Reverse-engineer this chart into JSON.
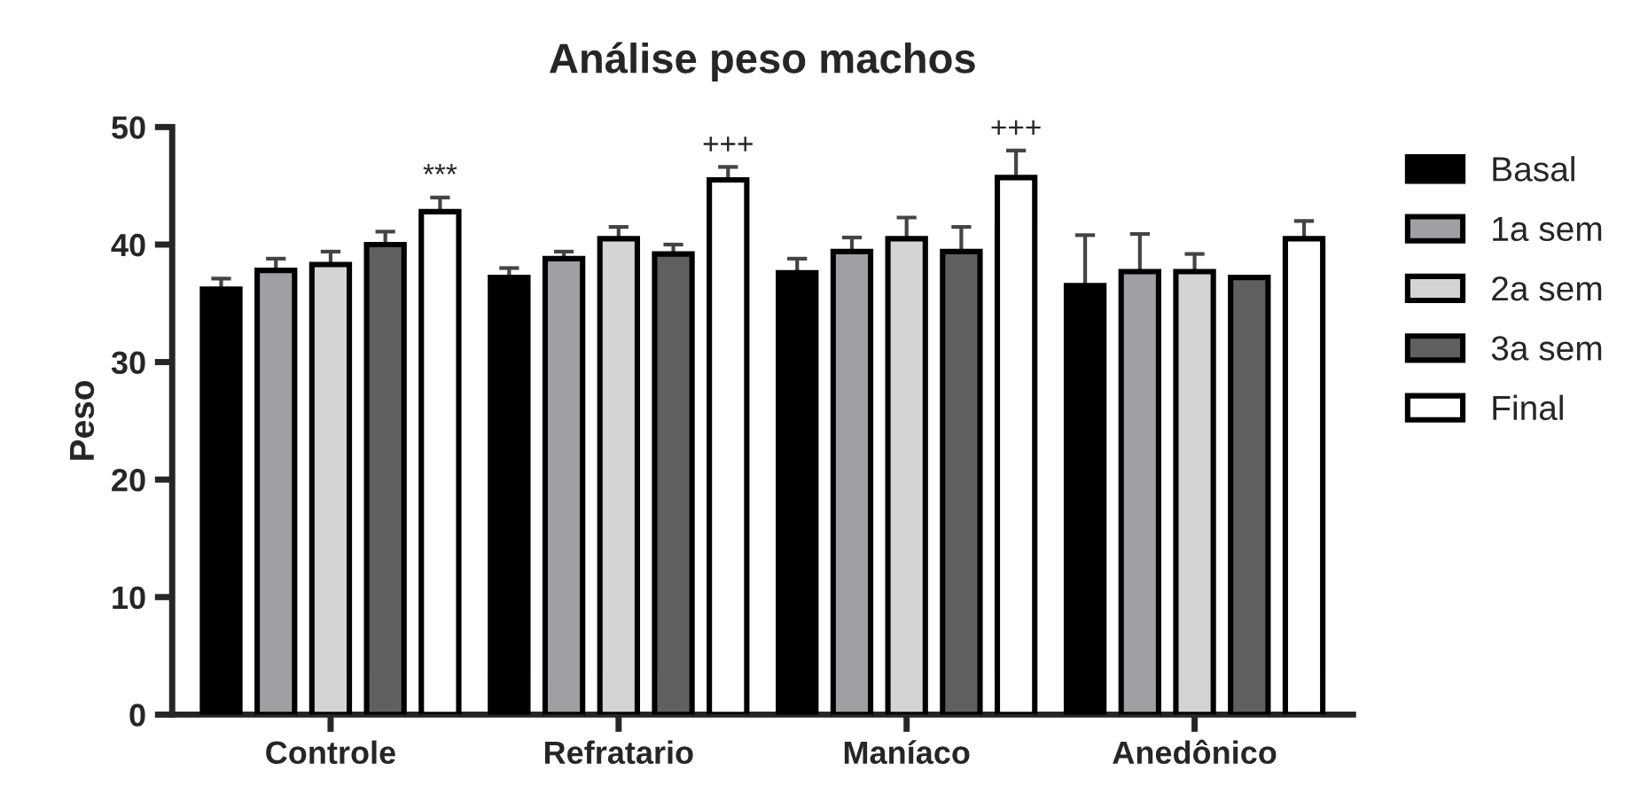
{
  "chart_data": {
    "type": "bar",
    "title": "Análise peso machos",
    "ylabel": "Peso",
    "categories": [
      "Controle",
      "Refratario",
      "Maníaco",
      "Anedônico"
    ],
    "series": [
      {
        "name": "Basal",
        "color": "#000000",
        "values": [
          36.2,
          37.2,
          37.6,
          36.5
        ],
        "errors": [
          0.9,
          0.8,
          1.2,
          4.3
        ]
      },
      {
        "name": "1a sem",
        "color": "#a0a0a4",
        "values": [
          37.8,
          38.8,
          39.4,
          37.7
        ],
        "errors": [
          1.0,
          0.6,
          1.2,
          3.2
        ]
      },
      {
        "name": "2a sem",
        "color": "#d4d4d4",
        "values": [
          38.3,
          40.5,
          40.5,
          37.7
        ],
        "errors": [
          1.1,
          1.0,
          1.8,
          1.5
        ]
      },
      {
        "name": "3a sem",
        "color": "#606060",
        "values": [
          40.0,
          39.2,
          39.4,
          37.2
        ],
        "errors": [
          1.1,
          0.8,
          2.1,
          null
        ]
      },
      {
        "name": "Final",
        "color": "#ffffff",
        "values": [
          42.8,
          45.5,
          45.7,
          40.5
        ],
        "errors": [
          1.2,
          1.1,
          2.3,
          1.5
        ]
      }
    ],
    "ylim": [
      0,
      50
    ],
    "yticks": [
      0,
      10,
      20,
      30,
      40,
      50
    ],
    "grid": false,
    "legend": "right",
    "annotations": [
      "***",
      "+++",
      "+++"
    ]
  }
}
